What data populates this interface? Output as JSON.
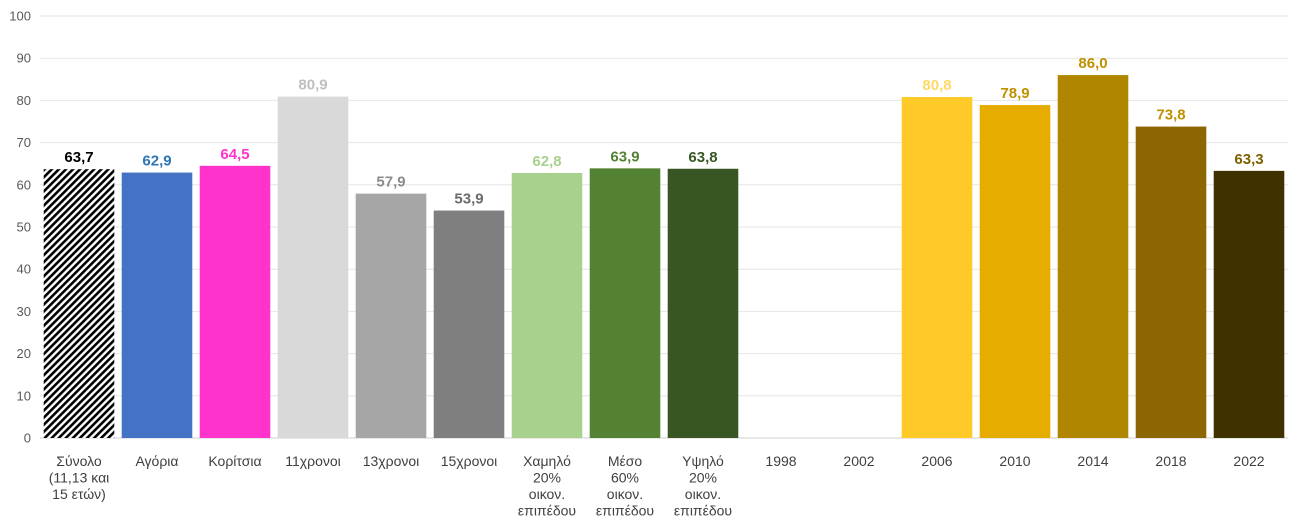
{
  "chart_data": {
    "type": "bar",
    "title": "",
    "xlabel": "",
    "ylabel": "",
    "ylim": [
      0,
      100
    ],
    "yticks": [
      0,
      10,
      20,
      30,
      40,
      50,
      60,
      70,
      80,
      90,
      100
    ],
    "grid": true,
    "legend": "none",
    "categories": [
      [
        "Σύνολο",
        "(11,13 και",
        "15 ετών)"
      ],
      [
        "Αγόρια"
      ],
      [
        "Κορίτσια"
      ],
      [
        "11χρονοι"
      ],
      [
        "13χρονοι"
      ],
      [
        "15χρονοι"
      ],
      [
        "Χαμηλό",
        "20%",
        "οικον.",
        "επιπέδου"
      ],
      [
        "Μέσο",
        "60%",
        "οικον.",
        "επιπέδου"
      ],
      [
        "Υψηλό",
        "20%",
        "οικον.",
        "επιπέδου"
      ],
      [
        "1998"
      ],
      [
        "2002"
      ],
      [
        "2006"
      ],
      [
        "2010"
      ],
      [
        "2014"
      ],
      [
        "2018"
      ],
      [
        "2022"
      ]
    ],
    "values": [
      63.7,
      62.9,
      64.5,
      80.9,
      57.9,
      53.9,
      62.8,
      63.9,
      63.8,
      null,
      null,
      80.8,
      78.9,
      86.0,
      73.8,
      63.3
    ],
    "labels": [
      "63,7",
      "62,9",
      "64,5",
      "80,9",
      "57,9",
      "53,9",
      "62,8",
      "63,9",
      "63,8",
      "",
      "",
      "80,8",
      "78,9",
      "86,0",
      "73,8",
      "63,3"
    ],
    "bar_colors": [
      "hatch",
      "#4472c4",
      "#ff33cc",
      "#d9d9d9",
      "#a6a6a6",
      "#7f7f7f",
      "#a9d18e",
      "#548235",
      "#375623",
      "",
      "",
      "#ffca28",
      "#e6ac00",
      "#b08500",
      "#8c6600",
      "#3f3200"
    ],
    "label_colors": [
      "#000000",
      "#2e75b6",
      "#ff33cc",
      "#bfbfbf",
      "#8c8c8c",
      "#6b6b6b",
      "#a9d18e",
      "#548235",
      "#375623",
      "",
      "",
      "#ffd966",
      "#bf9000",
      "#bf9000",
      "#bf9000",
      "#7f6000"
    ]
  }
}
